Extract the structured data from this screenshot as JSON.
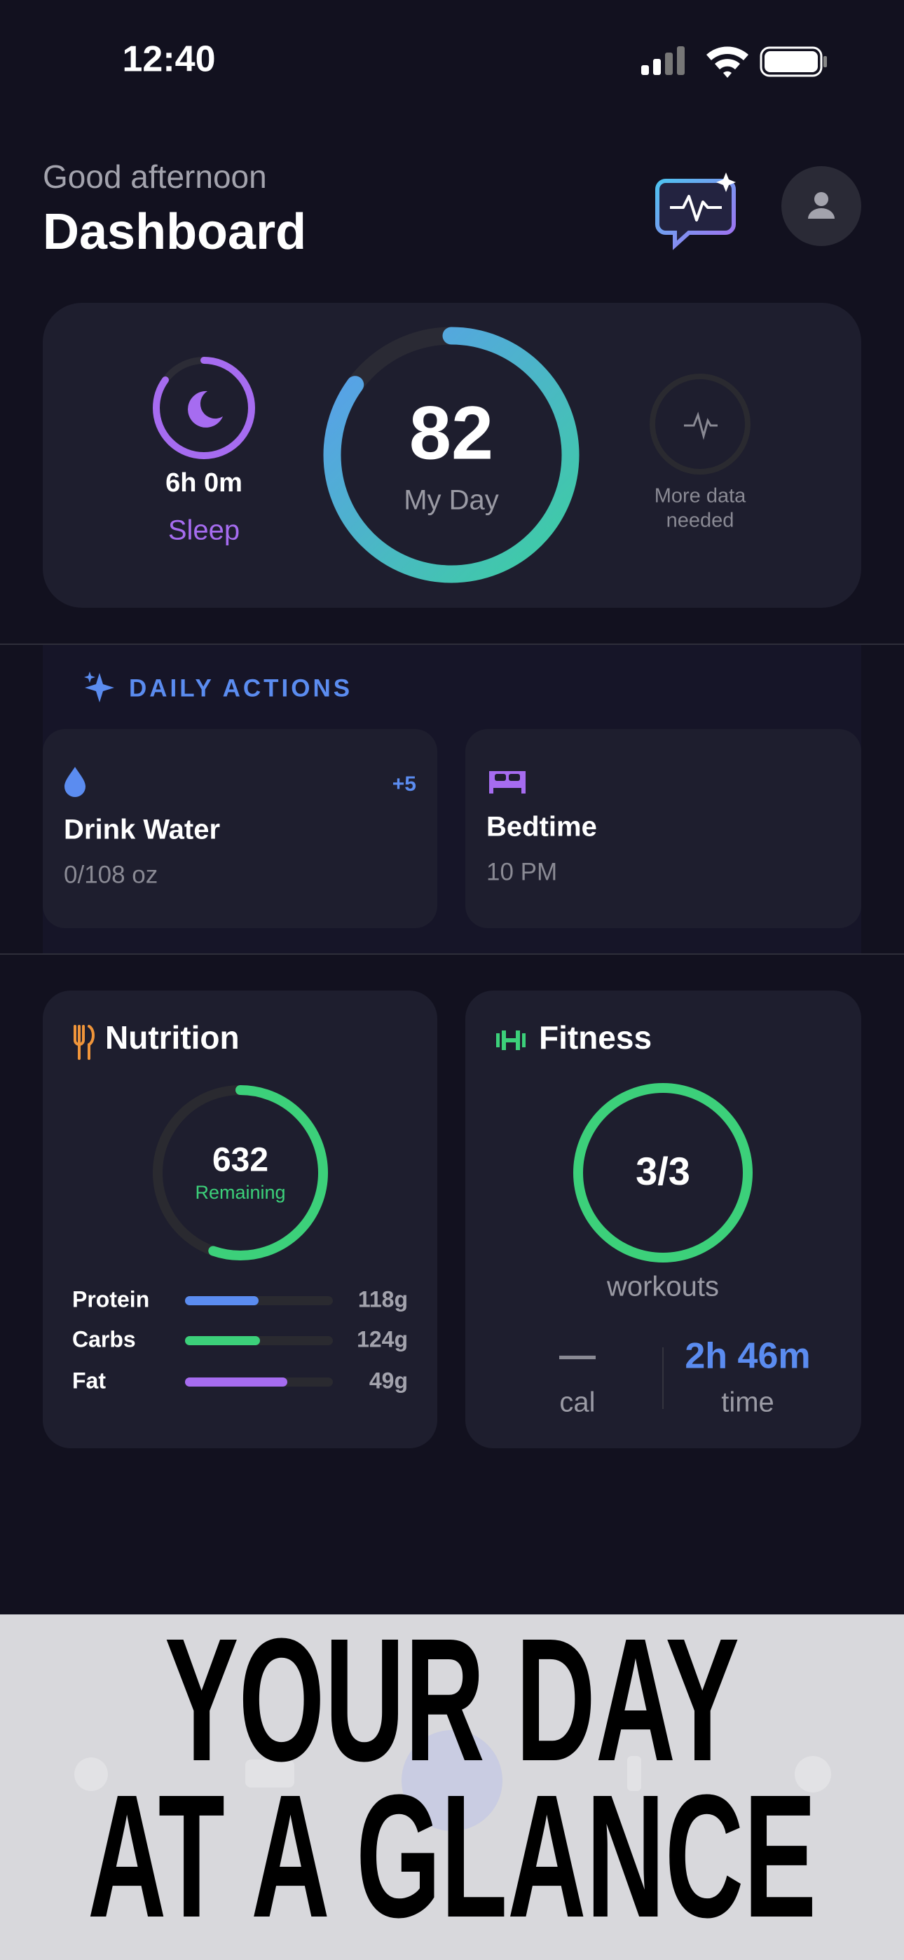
{
  "status_bar": {
    "time": "12:40"
  },
  "header": {
    "greeting": "Good afternoon",
    "title": "Dashboard"
  },
  "summary": {
    "sleep": {
      "value": "6h 0m",
      "label": "Sleep"
    },
    "score": {
      "value": "82",
      "label": "My Day"
    },
    "extra": {
      "lines": [
        "More data",
        "needed"
      ]
    }
  },
  "daily_actions": {
    "title": "DAILY ACTIONS",
    "items": [
      {
        "title": "Drink Water",
        "detail": "0/108 oz",
        "badge": "+5"
      },
      {
        "title": "Bedtime",
        "detail": "10 PM"
      }
    ]
  },
  "nutrition": {
    "title": "Nutrition",
    "remaining": "632",
    "remaining_label": "Remaining",
    "macros": [
      {
        "name": "Protein",
        "amount": "118g"
      },
      {
        "name": "Carbs",
        "amount": "124g"
      },
      {
        "name": "Fat",
        "amount": "49g"
      }
    ]
  },
  "fitness": {
    "title": "Fitness",
    "workouts": "3/3",
    "workouts_label": "workouts",
    "stats": [
      {
        "value": "—",
        "label": "cal"
      },
      {
        "value": "2h 46m",
        "label": "time"
      }
    ]
  },
  "banner": {
    "lines": [
      "YOUR DAY",
      "AT A GLANCE"
    ]
  }
}
